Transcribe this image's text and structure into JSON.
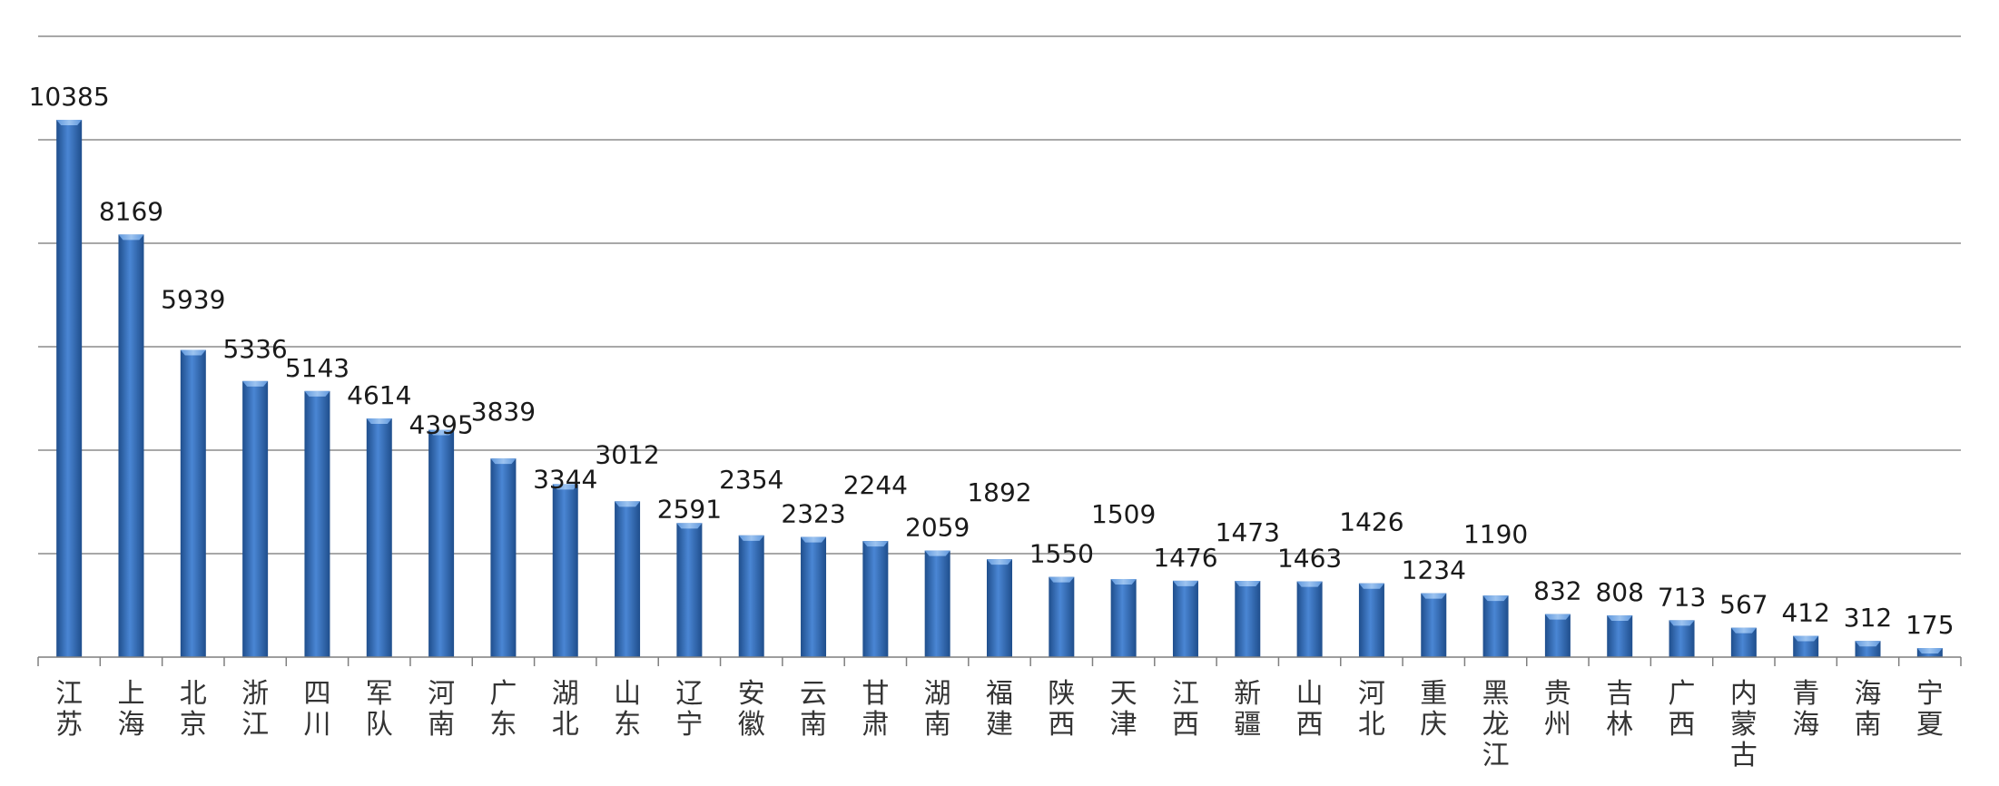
{
  "chart_data": {
    "type": "bar",
    "title": "",
    "xlabel": "",
    "ylabel": "",
    "ylim": [
      0,
      12000
    ],
    "grid": true,
    "gridlines": [
      2000,
      4000,
      6000,
      8000,
      10000,
      12000
    ],
    "colors": {
      "bar_dark": "#1f4e8c",
      "bar_mid": "#4a86d4",
      "bar_light": "#9cc3f0",
      "grid": "#8c8c8c",
      "axis": "#7f7f7f"
    },
    "categories": [
      "江苏",
      "上海",
      "北京",
      "浙江",
      "四川",
      "军队",
      "河南",
      "广东",
      "湖北",
      "山东",
      "辽宁",
      "安徽",
      "云南",
      "甘肃",
      "湖南",
      "福建",
      "陕西",
      "天津",
      "江西",
      "新疆",
      "山西",
      "河北",
      "重庆",
      "黑龙江",
      "贵州",
      "吉林",
      "广西",
      "内蒙古",
      "青海",
      "海南",
      "宁夏"
    ],
    "values": [
      10385,
      8169,
      5939,
      5336,
      5143,
      4614,
      4395,
      3839,
      3344,
      3012,
      2591,
      2354,
      2323,
      2244,
      2059,
      1892,
      1550,
      1509,
      1476,
      1473,
      1463,
      1426,
      1234,
      1190,
      832,
      808,
      713,
      567,
      412,
      312,
      175
    ],
    "data_labels": [
      "10385",
      "8169",
      "5939",
      "5336",
      "5143",
      "4614",
      "4395",
      "3839",
      "3344",
      "3012",
      "2591",
      "2354",
      "2323",
      "2244",
      "2059",
      "1892",
      "1550",
      "1509",
      "1476",
      "1473",
      "1463",
      "1426",
      "1234",
      "1190",
      "832",
      "808",
      "713",
      "567",
      "412",
      "312",
      "175"
    ]
  }
}
